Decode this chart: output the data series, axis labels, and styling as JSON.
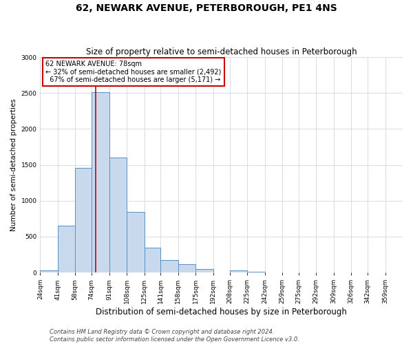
{
  "title": "62, NEWARK AVENUE, PETERBOROUGH, PE1 4NS",
  "subtitle": "Size of property relative to semi-detached houses in Peterborough",
  "xlabel": "Distribution of semi-detached houses by size in Peterborough",
  "ylabel": "Number of semi-detached properties",
  "bin_labels": [
    "24sqm",
    "41sqm",
    "58sqm",
    "74sqm",
    "91sqm",
    "108sqm",
    "125sqm",
    "141sqm",
    "158sqm",
    "175sqm",
    "192sqm",
    "208sqm",
    "225sqm",
    "242sqm",
    "259sqm",
    "275sqm",
    "292sqm",
    "309sqm",
    "326sqm",
    "342sqm",
    "359sqm"
  ],
  "bin_edges": [
    24,
    41,
    58,
    74,
    91,
    108,
    125,
    141,
    158,
    175,
    192,
    208,
    225,
    242,
    259,
    275,
    292,
    309,
    326,
    342,
    359
  ],
  "bar_values": [
    30,
    650,
    1460,
    2510,
    1600,
    840,
    350,
    175,
    120,
    50,
    0,
    25,
    10,
    0,
    0,
    0,
    0,
    0,
    0,
    0
  ],
  "property_size": 78,
  "property_label": "62 NEWARK AVENUE: 78sqm",
  "pct_smaller": 32,
  "pct_larger": 67,
  "n_smaller": 2492,
  "n_larger": 5171,
  "bar_fill_color": "#c9d9ed",
  "bar_edge_color": "#5a8fc0",
  "vline_color": "#cc0000",
  "annotation_box_edge": "#cc0000",
  "background_color": "#ffffff",
  "footer_line1": "Contains HM Land Registry data © Crown copyright and database right 2024.",
  "footer_line2": "Contains public sector information licensed under the Open Government Licence v3.0.",
  "ylim": [
    0,
    3000
  ],
  "yticks": [
    0,
    500,
    1000,
    1500,
    2000,
    2500,
    3000
  ],
  "title_fontsize": 10,
  "subtitle_fontsize": 8.5,
  "xlabel_fontsize": 8.5,
  "ylabel_fontsize": 7.5,
  "tick_fontsize": 6.5,
  "footer_fontsize": 6.0,
  "annot_fontsize": 7.0
}
